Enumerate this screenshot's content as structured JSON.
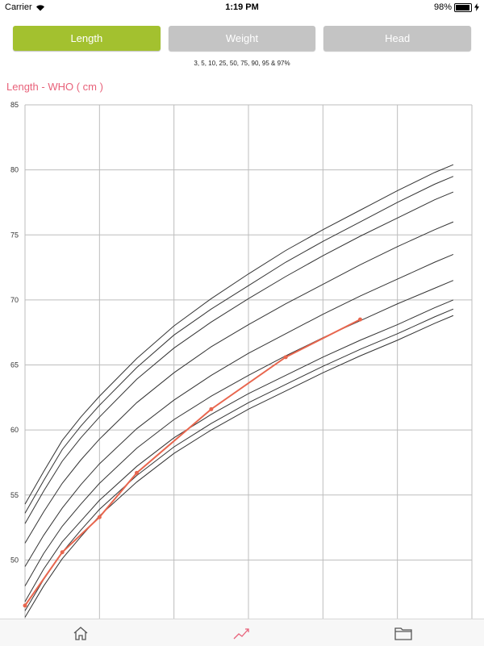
{
  "status_bar": {
    "carrier": "Carrier",
    "time": "1:19 PM",
    "battery": "98%",
    "battery_level": 0.98
  },
  "tabs": [
    {
      "label": "Length",
      "active": true
    },
    {
      "label": "Weight",
      "active": false
    },
    {
      "label": "Head",
      "active": false
    }
  ],
  "percentiles_label": "3, 5, 10, 25, 50, 75, 90, 95 & 97%",
  "chart_title": "Length - WHO ( cm )",
  "chart_data": {
    "type": "line",
    "title": "Length - WHO ( cm )",
    "xlabel": "",
    "ylabel": "",
    "xlim": [
      0,
      6
    ],
    "ylim": [
      45.5,
      85
    ],
    "yticks": [
      50,
      55,
      60,
      65,
      70,
      75,
      80,
      85
    ],
    "grid": true,
    "x": [
      0,
      0.25,
      0.5,
      0.75,
      1,
      1.5,
      2,
      2.5,
      3,
      3.5,
      4,
      4.5,
      5,
      5.5,
      5.75
    ],
    "series": [
      {
        "values": [
          45.6,
          48.0,
          50.1,
          51.8,
          53.4,
          56.0,
          58.2,
          60.0,
          61.6,
          63.0,
          64.4,
          65.7,
          66.9,
          68.2,
          68.8
        ]
      },
      {
        "values": [
          46.1,
          48.5,
          50.6,
          52.3,
          53.9,
          56.5,
          58.7,
          60.5,
          62.1,
          63.5,
          64.9,
          66.2,
          67.4,
          68.7,
          69.3
        ]
      },
      {
        "values": [
          46.8,
          49.3,
          51.4,
          53.0,
          54.6,
          57.2,
          59.4,
          61.2,
          62.8,
          64.2,
          65.6,
          66.9,
          68.1,
          69.4,
          70.0
        ]
      },
      {
        "values": [
          48.0,
          50.5,
          52.6,
          54.3,
          55.9,
          58.6,
          60.8,
          62.6,
          64.2,
          65.7,
          67.1,
          68.4,
          69.7,
          70.9,
          71.5
        ]
      },
      {
        "values": [
          49.5,
          51.9,
          54.0,
          55.8,
          57.4,
          60.1,
          62.3,
          64.2,
          65.9,
          67.4,
          68.9,
          70.3,
          71.6,
          72.9,
          73.5
        ]
      },
      {
        "values": [
          51.3,
          53.7,
          55.9,
          57.7,
          59.3,
          62.1,
          64.4,
          66.4,
          68.1,
          69.7,
          71.2,
          72.7,
          74.1,
          75.4,
          76.0
        ]
      },
      {
        "values": [
          52.8,
          55.3,
          57.6,
          59.4,
          61.0,
          63.9,
          66.3,
          68.3,
          70.1,
          71.8,
          73.4,
          74.9,
          76.3,
          77.7,
          78.3
        ]
      },
      {
        "values": [
          53.6,
          56.1,
          58.5,
          60.3,
          61.9,
          64.8,
          67.3,
          69.3,
          71.1,
          72.9,
          74.5,
          76.0,
          77.5,
          78.9,
          79.5
        ]
      },
      {
        "values": [
          54.3,
          56.8,
          59.2,
          61.0,
          62.6,
          65.5,
          68.0,
          70.1,
          72.0,
          73.8,
          75.4,
          76.9,
          78.4,
          79.8,
          80.4
        ]
      }
    ],
    "measurements": {
      "x": [
        0,
        0.5,
        1,
        1.5,
        2.5,
        3.5,
        4.5
      ],
      "values": [
        46.5,
        50.6,
        53.3,
        56.7,
        61.6,
        65.6,
        68.5
      ],
      "color": "#e8664e"
    },
    "colors": {
      "percentile_line": "#333333",
      "grid": "#bdbdbd",
      "accent": "#a3c12f",
      "title": "#e8627a"
    }
  },
  "bottom_nav": [
    {
      "icon": "home-icon",
      "active": false
    },
    {
      "icon": "chart-icon",
      "active": true
    },
    {
      "icon": "folder-icon",
      "active": false
    }
  ]
}
